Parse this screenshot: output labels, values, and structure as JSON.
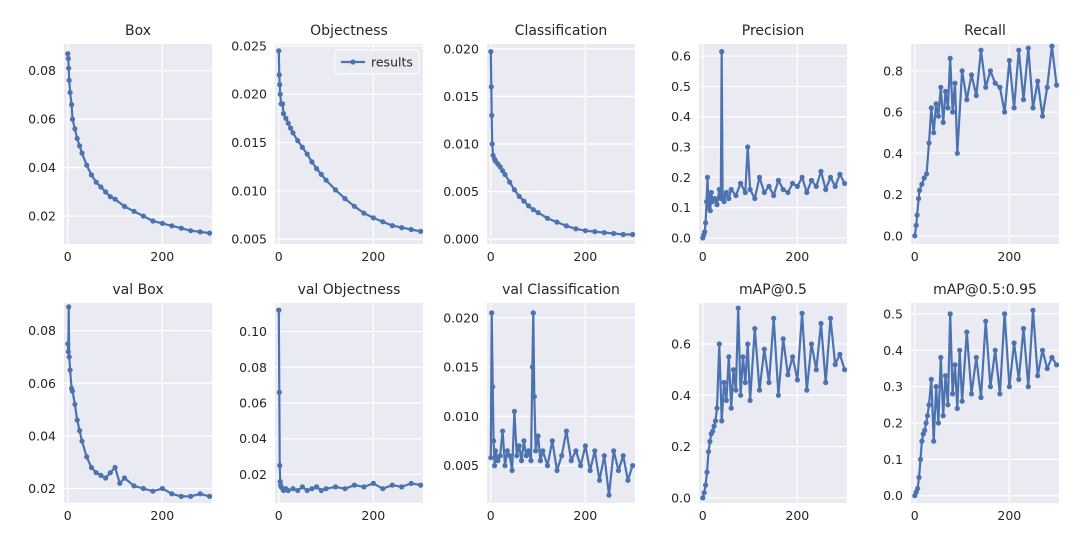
{
  "figure": {
    "style": {
      "plot_bg": "#eaeaf2",
      "grid": "#ffffff",
      "series_color": "#4c72b0"
    },
    "legend_label": "results"
  },
  "chart_data": [
    {
      "type": "line",
      "title": "Box",
      "xlabel": "",
      "ylabel": "",
      "xlim": [
        -8,
        305
      ],
      "ylim": [
        0.0085,
        0.091
      ],
      "xticks": [
        0,
        200
      ],
      "yticks": [
        0.02,
        0.04,
        0.06,
        0.08
      ],
      "series": [
        {
          "name": "results",
          "x": [
            0,
            1,
            2,
            3,
            5,
            8,
            10,
            15,
            20,
            25,
            30,
            40,
            50,
            60,
            70,
            80,
            90,
            100,
            120,
            140,
            160,
            180,
            200,
            220,
            240,
            260,
            280,
            300
          ],
          "y": [
            0.087,
            0.085,
            0.081,
            0.076,
            0.071,
            0.066,
            0.06,
            0.056,
            0.052,
            0.049,
            0.046,
            0.041,
            0.037,
            0.034,
            0.032,
            0.03,
            0.028,
            0.027,
            0.024,
            0.022,
            0.02,
            0.018,
            0.017,
            0.016,
            0.015,
            0.014,
            0.0135,
            0.013
          ]
        }
      ]
    },
    {
      "type": "line",
      "title": "Objectness",
      "xlabel": "",
      "ylabel": "",
      "xlim": [
        -8,
        305
      ],
      "ylim": [
        0.0045,
        0.0252
      ],
      "xticks": [
        0,
        200
      ],
      "yticks": [
        0.005,
        0.01,
        0.015,
        0.02,
        0.025
      ],
      "legend": {
        "entries": [
          "results"
        ],
        "placement": "top-right"
      },
      "series": [
        {
          "name": "results",
          "x": [
            0,
            1,
            2,
            3,
            5,
            8,
            10,
            15,
            20,
            25,
            30,
            40,
            50,
            60,
            70,
            80,
            90,
            100,
            120,
            140,
            160,
            180,
            200,
            220,
            240,
            260,
            280,
            300
          ],
          "y": [
            0.0245,
            0.022,
            0.021,
            0.02,
            0.019,
            0.019,
            0.018,
            0.0175,
            0.017,
            0.0165,
            0.016,
            0.0152,
            0.0145,
            0.0138,
            0.013,
            0.0123,
            0.0117,
            0.0111,
            0.0101,
            0.0092,
            0.0084,
            0.0077,
            0.0072,
            0.0068,
            0.0064,
            0.0062,
            0.006,
            0.0058
          ]
        }
      ]
    },
    {
      "type": "line",
      "title": "Classification",
      "xlabel": "",
      "ylabel": "",
      "xlim": [
        -8,
        305
      ],
      "ylim": [
        -0.0005,
        0.0205
      ],
      "xticks": [
        0,
        200
      ],
      "yticks": [
        0.0,
        0.005,
        0.01,
        0.015,
        0.02
      ],
      "series": [
        {
          "name": "results",
          "x": [
            0,
            1,
            2,
            3,
            5,
            8,
            10,
            15,
            20,
            25,
            30,
            40,
            50,
            60,
            70,
            80,
            90,
            100,
            120,
            140,
            160,
            180,
            200,
            220,
            240,
            260,
            280,
            300
          ],
          "y": [
            0.0197,
            0.016,
            0.013,
            0.01,
            0.0088,
            0.0084,
            0.0082,
            0.0079,
            0.0076,
            0.0072,
            0.0068,
            0.006,
            0.0052,
            0.0045,
            0.004,
            0.0035,
            0.0031,
            0.0028,
            0.0022,
            0.0018,
            0.0014,
            0.0011,
            0.0009,
            0.0008,
            0.0007,
            0.0006,
            0.0005,
            0.0005
          ]
        }
      ]
    },
    {
      "type": "line",
      "title": "Precision",
      "xlabel": "",
      "ylabel": "",
      "xlim": [
        -8,
        305
      ],
      "ylim": [
        -0.02,
        0.64
      ],
      "xticks": [
        0,
        200
      ],
      "yticks": [
        0.0,
        0.1,
        0.2,
        0.3,
        0.4,
        0.5,
        0.6
      ],
      "series": [
        {
          "name": "results",
          "x": [
            0,
            2,
            4,
            6,
            8,
            10,
            12,
            14,
            16,
            18,
            20,
            25,
            30,
            35,
            38,
            40,
            42,
            45,
            50,
            55,
            60,
            70,
            80,
            90,
            95,
            100,
            110,
            120,
            130,
            140,
            150,
            160,
            170,
            180,
            190,
            200,
            210,
            220,
            230,
            240,
            250,
            260,
            270,
            280,
            290,
            300
          ],
          "y": [
            0.0,
            0.01,
            0.02,
            0.05,
            0.12,
            0.2,
            0.1,
            0.14,
            0.09,
            0.15,
            0.12,
            0.13,
            0.11,
            0.16,
            0.13,
            0.615,
            0.14,
            0.12,
            0.15,
            0.13,
            0.16,
            0.14,
            0.18,
            0.15,
            0.3,
            0.16,
            0.13,
            0.2,
            0.15,
            0.17,
            0.14,
            0.19,
            0.16,
            0.15,
            0.18,
            0.17,
            0.2,
            0.15,
            0.19,
            0.17,
            0.22,
            0.16,
            0.2,
            0.17,
            0.21,
            0.18
          ]
        }
      ]
    },
    {
      "type": "line",
      "title": "Recall",
      "xlabel": "",
      "ylabel": "",
      "xlim": [
        -8,
        305
      ],
      "ylim": [
        -0.04,
        0.93
      ],
      "xticks": [
        0,
        200
      ],
      "yticks": [
        0.0,
        0.2,
        0.4,
        0.6,
        0.8
      ],
      "series": [
        {
          "name": "results",
          "x": [
            0,
            3,
            5,
            8,
            10,
            15,
            20,
            25,
            30,
            35,
            40,
            45,
            50,
            55,
            60,
            65,
            70,
            75,
            80,
            85,
            90,
            100,
            110,
            120,
            130,
            140,
            150,
            160,
            170,
            180,
            190,
            200,
            210,
            220,
            230,
            240,
            250,
            260,
            270,
            280,
            290,
            300
          ],
          "y": [
            0.0,
            0.05,
            0.1,
            0.18,
            0.22,
            0.25,
            0.28,
            0.3,
            0.45,
            0.62,
            0.5,
            0.64,
            0.58,
            0.72,
            0.55,
            0.7,
            0.62,
            0.86,
            0.6,
            0.74,
            0.4,
            0.8,
            0.66,
            0.78,
            0.68,
            0.9,
            0.72,
            0.8,
            0.74,
            0.72,
            0.6,
            0.85,
            0.62,
            0.9,
            0.66,
            0.91,
            0.62,
            0.75,
            0.58,
            0.72,
            0.92,
            0.73
          ]
        }
      ]
    },
    {
      "type": "line",
      "title": "val Box",
      "xlabel": "",
      "ylabel": "",
      "xlim": [
        -8,
        305
      ],
      "ylim": [
        0.0145,
        0.0905
      ],
      "xticks": [
        0,
        200
      ],
      "yticks": [
        0.02,
        0.04,
        0.06,
        0.08
      ],
      "series": [
        {
          "name": "results",
          "x": [
            0,
            1,
            2,
            3,
            5,
            8,
            10,
            15,
            20,
            25,
            30,
            40,
            50,
            60,
            70,
            80,
            90,
            100,
            110,
            120,
            140,
            160,
            180,
            200,
            220,
            240,
            260,
            280,
            300
          ],
          "y": [
            0.075,
            0.072,
            0.089,
            0.07,
            0.065,
            0.058,
            0.057,
            0.052,
            0.046,
            0.042,
            0.038,
            0.032,
            0.028,
            0.026,
            0.025,
            0.024,
            0.026,
            0.028,
            0.022,
            0.024,
            0.021,
            0.02,
            0.019,
            0.02,
            0.018,
            0.017,
            0.017,
            0.018,
            0.017
          ]
        }
      ]
    },
    {
      "type": "line",
      "title": "val Objectness",
      "xlabel": "",
      "ylabel": "",
      "xlim": [
        -8,
        305
      ],
      "ylim": [
        0.004,
        0.116
      ],
      "xticks": [
        0,
        200
      ],
      "yticks": [
        0.02,
        0.04,
        0.06,
        0.08,
        0.1
      ],
      "series": [
        {
          "name": "results",
          "x": [
            0,
            1,
            2,
            3,
            4,
            5,
            8,
            10,
            15,
            20,
            30,
            40,
            50,
            60,
            70,
            80,
            90,
            100,
            120,
            140,
            160,
            180,
            200,
            220,
            240,
            260,
            280,
            300
          ],
          "y": [
            0.112,
            0.066,
            0.025,
            0.016,
            0.014,
            0.013,
            0.012,
            0.011,
            0.012,
            0.011,
            0.012,
            0.011,
            0.013,
            0.011,
            0.012,
            0.013,
            0.011,
            0.012,
            0.013,
            0.012,
            0.014,
            0.013,
            0.015,
            0.012,
            0.014,
            0.013,
            0.015,
            0.014
          ]
        }
      ]
    },
    {
      "type": "line",
      "title": "val Classification",
      "xlabel": "",
      "ylabel": "",
      "xlim": [
        -8,
        305
      ],
      "ylim": [
        0.0012,
        0.0215
      ],
      "xticks": [
        0,
        200
      ],
      "yticks": [
        0.005,
        0.01,
        0.015,
        0.02
      ],
      "series": [
        {
          "name": "results",
          "x": [
            0,
            2,
            4,
            6,
            8,
            10,
            15,
            20,
            25,
            30,
            35,
            40,
            45,
            50,
            55,
            60,
            65,
            70,
            75,
            80,
            85,
            88,
            90,
            92,
            95,
            100,
            105,
            110,
            120,
            130,
            140,
            150,
            160,
            170,
            180,
            190,
            200,
            210,
            220,
            230,
            240,
            250,
            260,
            270,
            280,
            290,
            300
          ],
          "y": [
            0.0058,
            0.0205,
            0.013,
            0.0075,
            0.005,
            0.0065,
            0.0055,
            0.006,
            0.0085,
            0.005,
            0.0065,
            0.006,
            0.0045,
            0.0105,
            0.006,
            0.007,
            0.0055,
            0.0075,
            0.006,
            0.0065,
            0.0055,
            0.015,
            0.0205,
            0.012,
            0.0065,
            0.008,
            0.0055,
            0.0065,
            0.005,
            0.0075,
            0.0045,
            0.006,
            0.0085,
            0.0055,
            0.0065,
            0.005,
            0.007,
            0.0045,
            0.0065,
            0.0035,
            0.006,
            0.002,
            0.0065,
            0.0045,
            0.006,
            0.0035,
            0.005
          ]
        }
      ]
    },
    {
      "type": "line",
      "title": "mAP@0.5",
      "xlabel": "",
      "ylabel": "",
      "xlim": [
        -8,
        305
      ],
      "ylim": [
        -0.02,
        0.76
      ],
      "xticks": [
        0,
        200
      ],
      "yticks": [
        0.0,
        0.2,
        0.4,
        0.6
      ],
      "series": [
        {
          "name": "results",
          "x": [
            0,
            3,
            6,
            9,
            12,
            15,
            18,
            21,
            24,
            27,
            30,
            35,
            40,
            45,
            50,
            55,
            60,
            65,
            70,
            75,
            80,
            85,
            90,
            95,
            100,
            110,
            120,
            130,
            140,
            150,
            160,
            170,
            180,
            190,
            200,
            210,
            220,
            230,
            240,
            250,
            260,
            270,
            280,
            290,
            300
          ],
          "y": [
            0.0,
            0.02,
            0.05,
            0.1,
            0.18,
            0.22,
            0.25,
            0.26,
            0.28,
            0.3,
            0.35,
            0.6,
            0.3,
            0.45,
            0.38,
            0.55,
            0.35,
            0.5,
            0.42,
            0.74,
            0.4,
            0.55,
            0.45,
            0.6,
            0.38,
            0.66,
            0.42,
            0.58,
            0.45,
            0.7,
            0.4,
            0.62,
            0.48,
            0.55,
            0.46,
            0.72,
            0.42,
            0.6,
            0.5,
            0.68,
            0.45,
            0.7,
            0.52,
            0.56,
            0.5
          ]
        }
      ]
    },
    {
      "type": "line",
      "title": "mAP@0.5:0.95",
      "xlabel": "",
      "ylabel": "",
      "xlim": [
        -8,
        305
      ],
      "ylim": [
        -0.02,
        0.53
      ],
      "xticks": [
        0,
        200
      ],
      "yticks": [
        0.0,
        0.1,
        0.2,
        0.3,
        0.4,
        0.5
      ],
      "series": [
        {
          "name": "results",
          "x": [
            0,
            3,
            6,
            9,
            12,
            15,
            18,
            21,
            24,
            27,
            30,
            35,
            40,
            45,
            50,
            55,
            60,
            65,
            70,
            75,
            80,
            85,
            90,
            95,
            100,
            110,
            120,
            130,
            140,
            150,
            160,
            170,
            180,
            190,
            200,
            210,
            220,
            230,
            240,
            250,
            260,
            270,
            280,
            290,
            300
          ],
          "y": [
            0.0,
            0.01,
            0.02,
            0.05,
            0.1,
            0.15,
            0.17,
            0.18,
            0.2,
            0.22,
            0.25,
            0.32,
            0.15,
            0.3,
            0.2,
            0.38,
            0.22,
            0.33,
            0.25,
            0.5,
            0.28,
            0.36,
            0.24,
            0.4,
            0.26,
            0.45,
            0.28,
            0.38,
            0.27,
            0.48,
            0.3,
            0.4,
            0.28,
            0.5,
            0.3,
            0.42,
            0.32,
            0.46,
            0.3,
            0.51,
            0.33,
            0.4,
            0.35,
            0.38,
            0.36
          ]
        }
      ]
    }
  ]
}
